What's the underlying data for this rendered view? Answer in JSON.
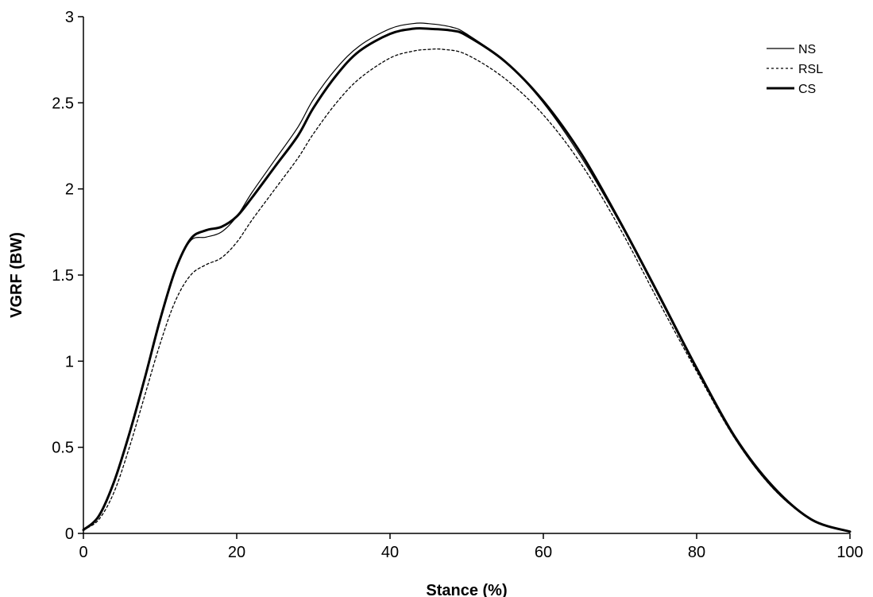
{
  "chart_data": {
    "type": "line",
    "title": "",
    "xlabel": "Stance (%)",
    "ylabel": "VGRF (BW)",
    "xlim": [
      0,
      100
    ],
    "ylim": [
      0,
      3
    ],
    "xticks": [
      0,
      20,
      40,
      60,
      80,
      100
    ],
    "yticks": [
      0,
      0.5,
      1,
      1.5,
      2,
      2.5,
      3
    ],
    "grid": false,
    "legend": "top-right",
    "series": [
      {
        "name": "NS",
        "style": "thin-solid",
        "color": "#000000",
        "x": [
          0,
          2,
          4,
          6,
          8,
          10,
          12,
          14,
          16,
          18,
          20,
          22,
          25,
          28,
          30,
          33,
          36,
          40,
          43,
          45,
          48,
          50,
          55,
          60,
          65,
          70,
          75,
          80,
          85,
          90,
          95,
          100
        ],
        "y": [
          0.02,
          0.1,
          0.3,
          0.58,
          0.9,
          1.24,
          1.53,
          1.7,
          1.72,
          1.75,
          1.84,
          1.98,
          2.17,
          2.36,
          2.52,
          2.7,
          2.83,
          2.93,
          2.96,
          2.96,
          2.94,
          2.9,
          2.74,
          2.5,
          2.18,
          1.8,
          1.38,
          0.95,
          0.55,
          0.26,
          0.08,
          0.01
        ]
      },
      {
        "name": "RSL",
        "style": "dotted",
        "color": "#000000",
        "x": [
          0,
          2,
          4,
          6,
          8,
          10,
          12,
          14,
          16,
          18,
          20,
          22,
          25,
          28,
          30,
          33,
          36,
          40,
          43,
          45,
          47,
          50,
          55,
          60,
          65,
          70,
          75,
          80,
          85,
          90,
          95,
          100
        ],
        "y": [
          0.02,
          0.08,
          0.24,
          0.5,
          0.8,
          1.1,
          1.35,
          1.5,
          1.56,
          1.6,
          1.69,
          1.82,
          2.0,
          2.18,
          2.32,
          2.5,
          2.64,
          2.76,
          2.8,
          2.81,
          2.81,
          2.78,
          2.64,
          2.43,
          2.14,
          1.77,
          1.35,
          0.94,
          0.55,
          0.26,
          0.08,
          0.01
        ]
      },
      {
        "name": "CS",
        "style": "thick-solid",
        "color": "#000000",
        "x": [
          0,
          2,
          4,
          6,
          8,
          10,
          12,
          14,
          16,
          18,
          20,
          22,
          25,
          28,
          30,
          33,
          36,
          40,
          43,
          45,
          48,
          50,
          55,
          60,
          65,
          70,
          75,
          80,
          85,
          90,
          95,
          100
        ],
        "y": [
          0.02,
          0.1,
          0.3,
          0.58,
          0.9,
          1.24,
          1.53,
          1.71,
          1.76,
          1.78,
          1.84,
          1.95,
          2.13,
          2.31,
          2.47,
          2.66,
          2.8,
          2.9,
          2.93,
          2.93,
          2.92,
          2.89,
          2.74,
          2.51,
          2.2,
          1.81,
          1.39,
          0.96,
          0.56,
          0.27,
          0.08,
          0.01
        ]
      }
    ]
  }
}
